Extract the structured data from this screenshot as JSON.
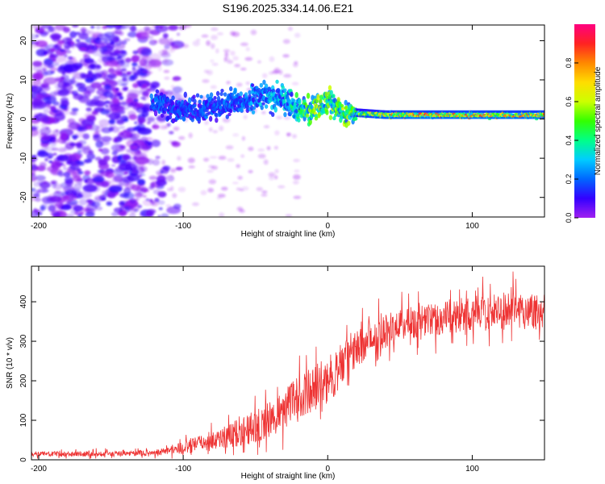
{
  "title": "S196.2025.334.14.06.E21",
  "colors": {
    "axis": "#000000",
    "snr_line": "#ee3333",
    "background": "#ffffff"
  },
  "chart_data": [
    {
      "type": "heatmap",
      "name": "spectrogram",
      "xlabel": "Height of straight line (km)",
      "ylabel": "Frequency (Hz)",
      "xlim": [
        -205,
        150
      ],
      "ylim": [
        -25,
        24
      ],
      "x_ticks": [
        -200,
        -100,
        0,
        100
      ],
      "x_tick_labels": [
        "-200",
        "-100",
        "0",
        "100"
      ],
      "y_ticks": [
        -20,
        -10,
        0,
        10,
        20
      ],
      "y_tick_labels": [
        "-20",
        "-10",
        "0",
        "10",
        "20"
      ],
      "colorbar": {
        "label": "Normalized spectral amplitude",
        "range": [
          0,
          1
        ],
        "ticks": [
          0.0,
          0.2,
          0.4,
          0.6,
          0.8
        ],
        "tick_labels": [
          "0.0",
          "0.2",
          "0.4",
          "0.6",
          "0.8"
        ],
        "stops": [
          "#a020f0",
          "#3300ff",
          "#0066ff",
          "#00ccff",
          "#00ff88",
          "#33ff00",
          "#ccff00",
          "#ffdd00",
          "#ff8800",
          "#ff2222",
          "#ff0080"
        ]
      },
      "ridge": [
        {
          "x": -120,
          "freq": 4,
          "amp": 0.22
        },
        {
          "x": -100,
          "freq": 2,
          "amp": 0.2
        },
        {
          "x": -80,
          "freq": 3,
          "amp": 0.22
        },
        {
          "x": -60,
          "freq": 4,
          "amp": 0.25
        },
        {
          "x": -45,
          "freq": 6,
          "amp": 0.3
        },
        {
          "x": -30,
          "freq": 5,
          "amp": 0.35
        },
        {
          "x": -20,
          "freq": 3,
          "amp": 0.45
        },
        {
          "x": -10,
          "freq": 2,
          "amp": 0.6
        },
        {
          "x": 0,
          "freq": 5,
          "amp": 0.55
        },
        {
          "x": 10,
          "freq": 2,
          "amp": 0.6
        },
        {
          "x": 20,
          "freq": 1.5,
          "amp": 0.55
        },
        {
          "x": 40,
          "freq": 1,
          "amp": 0.75
        },
        {
          "x": 60,
          "freq": 1,
          "amp": 0.85
        },
        {
          "x": 80,
          "freq": 1,
          "amp": 0.8
        },
        {
          "x": 100,
          "freq": 1,
          "amp": 0.85
        },
        {
          "x": 120,
          "freq": 1,
          "amp": 0.8
        },
        {
          "x": 150,
          "freq": 1,
          "amp": 0.82
        }
      ]
    },
    {
      "type": "line",
      "name": "snr",
      "xlabel": "Height of straight line (km)",
      "ylabel": "SNR (10 * v/v)",
      "xlim": [
        -205,
        150
      ],
      "ylim": [
        0,
        490
      ],
      "x_ticks": [
        -200,
        -100,
        0,
        100
      ],
      "x_tick_labels": [
        "-200",
        "-100",
        "0",
        "100"
      ],
      "y_ticks": [
        0,
        100,
        200,
        300,
        400
      ],
      "y_tick_labels": [
        "0",
        "100",
        "200",
        "300",
        "400"
      ],
      "trend": {
        "x": [
          -205,
          -150,
          -120,
          -100,
          -80,
          -60,
          -40,
          -30,
          -20,
          -10,
          0,
          10,
          20,
          30,
          40,
          60,
          80,
          100,
          120,
          150
        ],
        "y": [
          15,
          15,
          18,
          30,
          50,
          70,
          100,
          130,
          160,
          180,
          200,
          240,
          280,
          310,
          330,
          350,
          360,
          370,
          375,
          380
        ]
      },
      "spread": {
        "x": [
          -205,
          -120,
          -80,
          -40,
          -20,
          0,
          20,
          60,
          100,
          150
        ],
        "y": [
          10,
          12,
          40,
          80,
          90,
          100,
          80,
          70,
          75,
          80
        ]
      }
    }
  ]
}
